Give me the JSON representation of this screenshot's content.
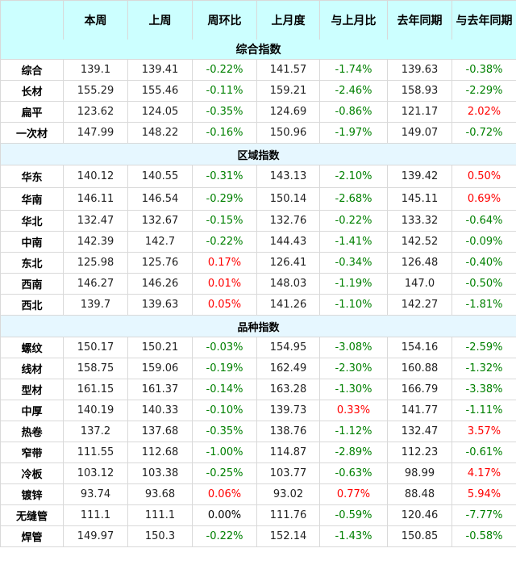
{
  "colors": {
    "header_bg": "#ccffff",
    "decrease": "#008000",
    "increase": "#ff0000"
  },
  "headers": [
    "",
    "本周",
    "上周",
    "周环比",
    "上月度",
    "与上月比",
    "去年同期",
    "与去年同期"
  ],
  "sections": [
    {
      "title": "综合指数",
      "rows": [
        [
          "综合",
          "139.1",
          "139.41",
          "-0.22%",
          "141.57",
          "-1.74%",
          "139.63",
          "-0.38%"
        ],
        [
          "长材",
          "155.29",
          "155.46",
          "-0.11%",
          "159.21",
          "-2.46%",
          "158.93",
          "-2.29%"
        ],
        [
          "扁平",
          "123.62",
          "124.05",
          "-0.35%",
          "124.69",
          "-0.86%",
          "121.17",
          "2.02%"
        ],
        [
          "一次材",
          "147.99",
          "148.22",
          "-0.16%",
          "150.96",
          "-1.97%",
          "149.07",
          "-0.72%"
        ]
      ]
    },
    {
      "title": "区域指数",
      "rows": [
        [
          "华东",
          "140.12",
          "140.55",
          "-0.31%",
          "143.13",
          "-2.10%",
          "139.42",
          "0.50%"
        ],
        [
          "华南",
          "146.11",
          "146.54",
          "-0.29%",
          "150.14",
          "-2.68%",
          "145.11",
          "0.69%"
        ],
        [
          "华北",
          "132.47",
          "132.67",
          "-0.15%",
          "132.76",
          "-0.22%",
          "133.32",
          "-0.64%"
        ],
        [
          "中南",
          "142.39",
          "142.7",
          "-0.22%",
          "144.43",
          "-1.41%",
          "142.52",
          "-0.09%"
        ],
        [
          "东北",
          "125.98",
          "125.76",
          "0.17%",
          "126.41",
          "-0.34%",
          "126.48",
          "-0.40%"
        ],
        [
          "西南",
          "146.27",
          "146.26",
          "0.01%",
          "148.03",
          "-1.19%",
          "147.0",
          "-0.50%"
        ],
        [
          "西北",
          "139.7",
          "139.63",
          "0.05%",
          "141.26",
          "-1.10%",
          "142.27",
          "-1.81%"
        ]
      ]
    },
    {
      "title": "品种指数",
      "rows": [
        [
          "螺纹",
          "150.17",
          "150.21",
          "-0.03%",
          "154.95",
          "-3.08%",
          "154.16",
          "-2.59%"
        ],
        [
          "线材",
          "158.75",
          "159.06",
          "-0.19%",
          "162.49",
          "-2.30%",
          "160.88",
          "-1.32%"
        ],
        [
          "型材",
          "161.15",
          "161.37",
          "-0.14%",
          "163.28",
          "-1.30%",
          "166.79",
          "-3.38%"
        ],
        [
          "中厚",
          "140.19",
          "140.33",
          "-0.10%",
          "139.73",
          "0.33%",
          "141.77",
          "-1.11%"
        ],
        [
          "热卷",
          "137.2",
          "137.68",
          "-0.35%",
          "138.76",
          "-1.12%",
          "132.47",
          "3.57%"
        ],
        [
          "窄带",
          "111.55",
          "112.68",
          "-1.00%",
          "114.87",
          "-2.89%",
          "112.23",
          "-0.61%"
        ],
        [
          "冷板",
          "103.12",
          "103.38",
          "-0.25%",
          "103.77",
          "-0.63%",
          "98.99",
          "4.17%"
        ],
        [
          "镀锌",
          "93.74",
          "93.68",
          "0.06%",
          "93.02",
          "0.77%",
          "88.48",
          "5.94%"
        ],
        [
          "无缝管",
          "111.1",
          "111.1",
          "0.00%",
          "111.76",
          "-0.59%",
          "120.46",
          "-7.77%"
        ],
        [
          "焊管",
          "149.97",
          "150.3",
          "-0.22%",
          "152.14",
          "-1.43%",
          "150.85",
          "-0.58%"
        ]
      ]
    }
  ]
}
